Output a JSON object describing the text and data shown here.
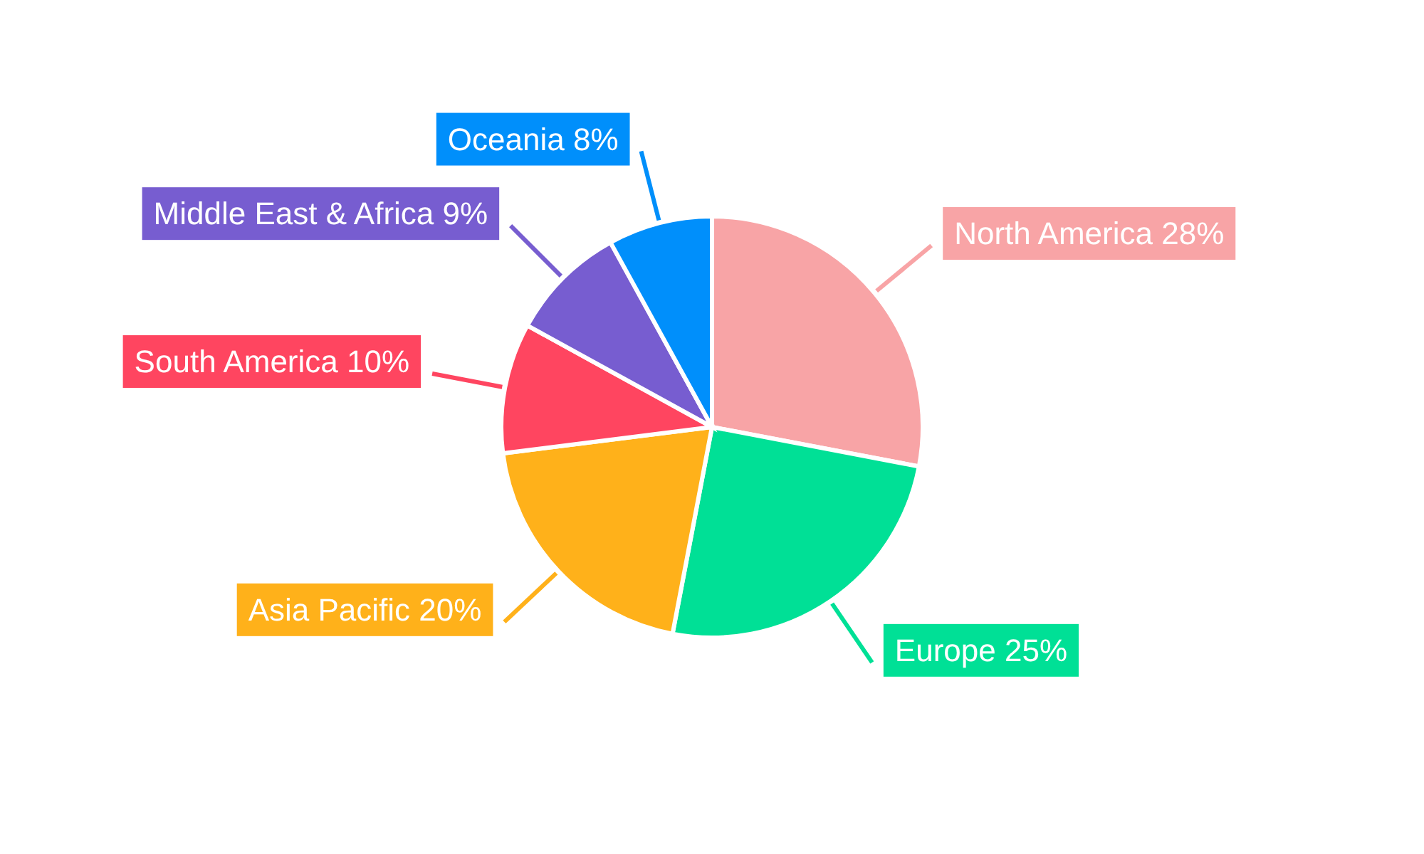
{
  "chart_data": {
    "type": "pie",
    "categories": [
      "North America",
      "Europe",
      "Asia Pacific",
      "South America",
      "Middle East & Africa",
      "Oceania"
    ],
    "values": [
      28,
      25,
      20,
      10,
      9,
      8
    ],
    "value_labels": [
      "28%",
      "25%",
      "20%",
      "10%",
      "9%",
      "8%"
    ],
    "colors": [
      "#f8a4a6",
      "#00e096",
      "#ffb11a",
      "#ff4560",
      "#775dd0",
      "#008ffb"
    ]
  }
}
